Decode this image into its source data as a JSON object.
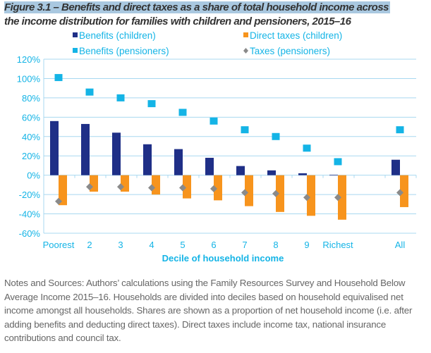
{
  "title": {
    "line1": "Figure 3.1 – Benefits and direct taxes as a share of total household income across",
    "line2": "the income distribution for families with children and pensioners, 2015–16"
  },
  "notes": "Notes and Sources: Authors’ calculations using the Family Resources Survey and Household Below Average Income 2015–16. Households are divided into deciles based on household equivalised net income amongst all households. Shares are shown as a proportion of net household income (i.e. after adding benefits and deducting direct taxes). Direct taxes include income tax, national insurance contributions and council tax.",
  "chart_data": {
    "type": "bar",
    "xlabel": "Decile of household income",
    "ylabel": "",
    "ylim": [
      -60,
      120
    ],
    "yticks": [
      120,
      100,
      80,
      60,
      40,
      20,
      0,
      -20,
      -40,
      -60
    ],
    "ytick_labels": [
      "120%",
      "100%",
      "80%",
      "60%",
      "40%",
      "20%",
      "0%",
      "-20%",
      "-40%",
      "-60%"
    ],
    "grid": true,
    "legend_position": "top",
    "categories": [
      "Poorest",
      "2",
      "3",
      "4",
      "5",
      "6",
      "7",
      "8",
      "9",
      "Richest",
      "",
      "All"
    ],
    "series": [
      {
        "name": "Benefits (children)",
        "kind": "bar",
        "color": "#1f2f87",
        "values": [
          56,
          53,
          44,
          32,
          27,
          18,
          9.5,
          5,
          2,
          0.5,
          null,
          16
        ]
      },
      {
        "name": "Direct taxes (children)",
        "kind": "bar",
        "color": "#f7941d",
        "values": [
          -31,
          -17,
          -17,
          -20,
          -24,
          -26,
          -32,
          -38,
          -42,
          -46,
          null,
          -33
        ]
      },
      {
        "name": "Benefits (pensioners)",
        "kind": "square",
        "color": "#14b4e6",
        "values": [
          101,
          86,
          80,
          74,
          65,
          56,
          47,
          40,
          28,
          14,
          null,
          47
        ]
      },
      {
        "name": "Taxes (pensioners)",
        "kind": "diamond",
        "color": "#8a8a8a",
        "values": [
          -27,
          -12,
          -12,
          -13,
          -13,
          -14,
          -18,
          -19,
          -23,
          -23,
          null,
          -18
        ]
      }
    ]
  }
}
